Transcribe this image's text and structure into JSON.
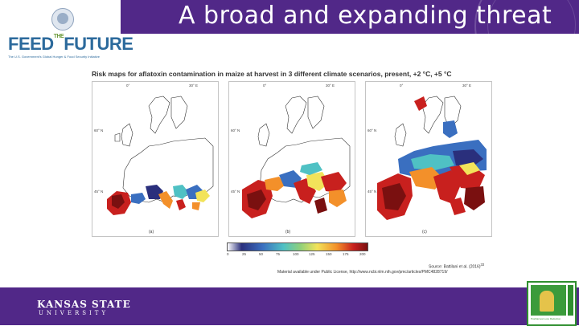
{
  "header": {
    "title": "A broad and expanding threat"
  },
  "logo": {
    "name_left": "FEED",
    "name_mid": "THE",
    "name_right": "FUTURE",
    "tagline": "The U.S. Government's Global Hunger & Food Security Initiative"
  },
  "figure": {
    "title": "Risk maps for aflatoxin contamination in maize at harvest in 3 different climate scenarios, present, +2 °C, +5 °C",
    "panels": [
      {
        "label": "(a)",
        "lon_ticks": [
          "0°",
          "30° E"
        ],
        "lat_ticks": [
          "60° N",
          "45° N"
        ]
      },
      {
        "label": "(b)",
        "lon_ticks": [
          "0°",
          "30° E"
        ],
        "lat_ticks": [
          "60° N",
          "45° N"
        ]
      },
      {
        "label": "(c)",
        "lon_ticks": [
          "0°",
          "30° E"
        ],
        "lat_ticks": [
          "60° N",
          "45° N"
        ]
      }
    ],
    "colorbar_ticks": [
      "0",
      "25",
      "50",
      "75",
      "100",
      "125",
      "150",
      "175",
      "200"
    ],
    "colorbar_colors": [
      "#ffffff",
      "#2a2f7c",
      "#3a6fc0",
      "#4fc1c4",
      "#8fd07a",
      "#f2e35a",
      "#f3902a",
      "#c8201e",
      "#7a1010"
    ],
    "source": "Source: Battilani et al. (2016)",
    "source_ref": "33",
    "license": "Material available under Public License, http://www.ncbi.nlm.nih.gov/pmc/articles/PMC4828719/"
  },
  "footer": {
    "university_name": "KANSAS STATE",
    "university_sub": "UNIVERSITY",
    "lab_caption": "Postharvest Loss Reduction"
  },
  "colors": {
    "brand_purple": "#512888",
    "logo_blue": "#2c6a9c",
    "lab_green": "#3b9b3b"
  }
}
